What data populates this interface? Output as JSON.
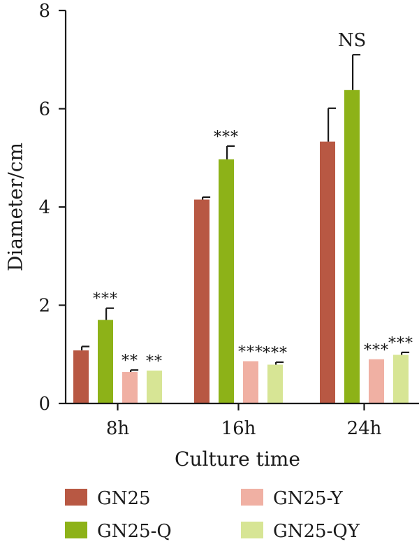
{
  "chart_data": {
    "type": "bar",
    "xlabel": "Culture time",
    "ylabel": "Diameter/cm",
    "ylim": [
      0,
      8
    ],
    "yticks": [
      0,
      2,
      4,
      6,
      8
    ],
    "categories": [
      "8h",
      "16h",
      "24h"
    ],
    "grid": false,
    "legend_position": "bottom",
    "series": [
      {
        "name": "GN25",
        "color": "#b85843",
        "values": [
          1.08,
          4.15,
          5.33
        ],
        "errors": [
          0.08,
          0.05,
          0.68
        ],
        "significance": [
          "",
          "",
          ""
        ]
      },
      {
        "name": "GN25-Q",
        "color": "#8db218",
        "values": [
          1.7,
          4.97,
          6.38
        ],
        "errors": [
          0.24,
          0.27,
          0.72
        ],
        "significance": [
          "***",
          "***",
          "NS"
        ]
      },
      {
        "name": "GN25-Y",
        "color": "#f0b0a3",
        "values": [
          0.64,
          0.86,
          0.9
        ],
        "errors": [
          0.04,
          0.0,
          0.0
        ],
        "significance": [
          "**",
          "***",
          "***"
        ]
      },
      {
        "name": "GN25-QY",
        "color": "#d7e595",
        "values": [
          0.67,
          0.79,
          0.99
        ],
        "errors": [
          0.0,
          0.05,
          0.05
        ],
        "significance": [
          "**",
          "***",
          "***"
        ]
      }
    ]
  }
}
